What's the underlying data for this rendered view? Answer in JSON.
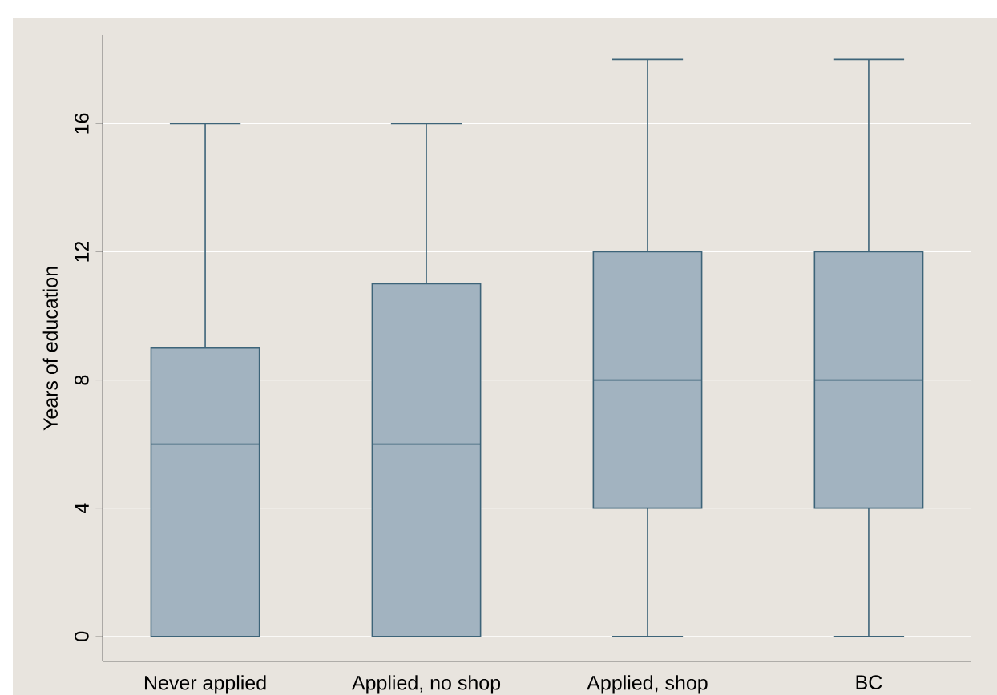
{
  "chart_data": {
    "type": "box",
    "ylabel": "Years of education",
    "categories": [
      "Never applied",
      "Applied, no shop",
      "Applied, shop",
      "BC"
    ],
    "boxes": [
      {
        "low": 0,
        "q1": 0,
        "median": 6,
        "q3": 9,
        "high": 16
      },
      {
        "low": 0,
        "q1": 0,
        "median": 6,
        "q3": 11,
        "high": 16
      },
      {
        "low": 0,
        "q1": 4,
        "median": 8,
        "q3": 12,
        "high": 18
      },
      {
        "low": 0,
        "q1": 4,
        "median": 8,
        "q3": 12,
        "high": 18
      }
    ],
    "color": "#a2b3c0",
    "ylim": [
      -0.78,
      18.76
    ],
    "yticks": [
      0,
      4,
      8,
      12,
      16
    ],
    "grid": "y"
  }
}
